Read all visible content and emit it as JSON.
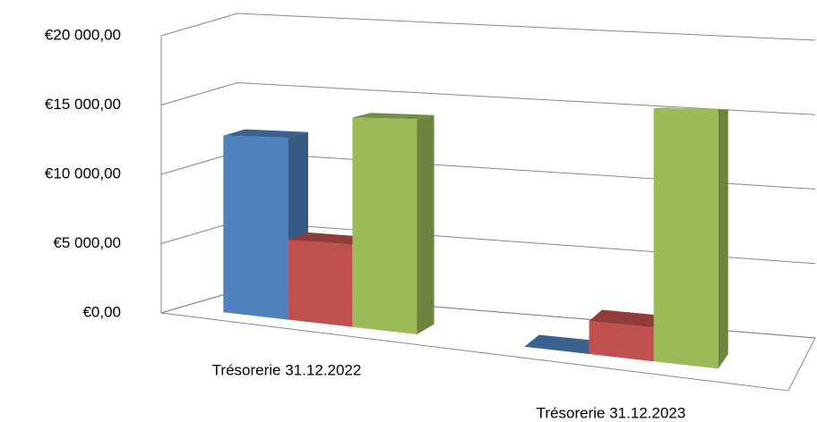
{
  "chart_data": {
    "type": "bar3d",
    "categories": [
      "Trésorerie 31.12.2022",
      "Trésorerie 31.12.2023"
    ],
    "series": [
      {
        "color": "#4f81bd",
        "values": [
          12500,
          0
        ]
      },
      {
        "color": "#c0504d",
        "values": [
          5500,
          2000
        ]
      },
      {
        "color": "#9bbb59",
        "values": [
          14000,
          15000
        ]
      }
    ],
    "ylim": [
      0,
      20000
    ],
    "yticks": [
      {
        "value": 0,
        "label": "€0,00"
      },
      {
        "value": 5000,
        "label": "€5 000,00"
      },
      {
        "value": 10000,
        "label": "€10 000,00"
      },
      {
        "value": 15000,
        "label": "€15 000,00"
      },
      {
        "value": 20000,
        "label": "€20 000,00"
      }
    ],
    "grid": true
  }
}
